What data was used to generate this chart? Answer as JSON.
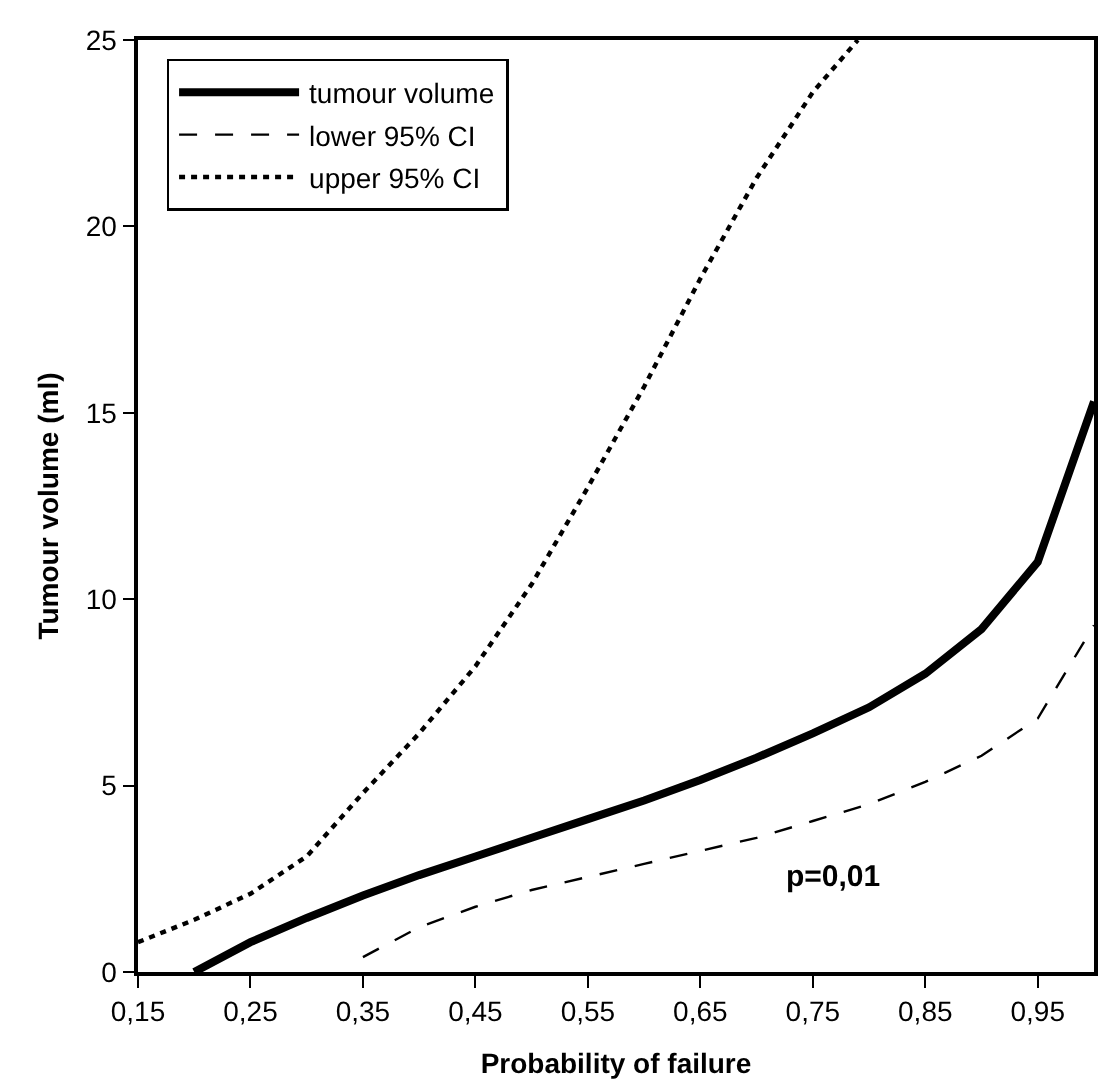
{
  "chart_data": {
    "type": "line",
    "xlabel": "Probability of failure",
    "ylabel": "Tumour volume (ml)",
    "xlim": [
      0.15,
      1.0
    ],
    "xticks": [
      {
        "value": 0.15,
        "label": "0,15"
      },
      {
        "value": 0.25,
        "label": "0,25"
      },
      {
        "value": 0.35,
        "label": "0,35"
      },
      {
        "value": 0.45,
        "label": "0,45"
      },
      {
        "value": 0.55,
        "label": "0,55"
      },
      {
        "value": 0.65,
        "label": "0,65"
      },
      {
        "value": 0.75,
        "label": "0,75"
      },
      {
        "value": 0.85,
        "label": "0,85"
      },
      {
        "value": 0.95,
        "label": "0,95"
      }
    ],
    "ylim": [
      0,
      25
    ],
    "yticks": [
      0,
      5,
      10,
      15,
      20,
      25
    ],
    "grid": false,
    "legend": "top left",
    "marker": "none",
    "series": [
      {
        "name": "tumour volume",
        "color": "#000000",
        "line_style": "solid",
        "x": [
          0.2,
          0.25,
          0.3,
          0.35,
          0.4,
          0.45,
          0.5,
          0.55,
          0.6,
          0.65,
          0.7,
          0.75,
          0.8,
          0.85,
          0.9,
          0.95,
          1.0
        ],
        "values": [
          0,
          0.8,
          1.45,
          2.05,
          2.6,
          3.1,
          3.6,
          4.1,
          4.6,
          5.15,
          5.75,
          6.4,
          7.1,
          8.0,
          9.2,
          11.0,
          15.3
        ]
      },
      {
        "name": "lower 95% CI",
        "color": "#000000",
        "line_style": "dashed",
        "x": [
          0.35,
          0.4,
          0.45,
          0.5,
          0.55,
          0.6,
          0.65,
          0.7,
          0.75,
          0.8,
          0.85,
          0.9,
          0.95,
          1.0
        ],
        "values": [
          0.4,
          1.2,
          1.75,
          2.2,
          2.55,
          2.9,
          3.25,
          3.6,
          4.05,
          4.5,
          5.1,
          5.8,
          6.8,
          9.3
        ]
      },
      {
        "name": "upper 95% CI",
        "color": "#000000",
        "line_style": "dotted",
        "x": [
          0.15,
          0.2,
          0.25,
          0.3,
          0.35,
          0.4,
          0.45,
          0.5,
          0.55,
          0.6,
          0.65,
          0.7,
          0.75,
          0.79
        ],
        "values": [
          0.8,
          1.4,
          2.1,
          3.1,
          4.8,
          6.4,
          8.2,
          10.4,
          13.0,
          15.7,
          18.6,
          21.3,
          23.6,
          25.0
        ]
      }
    ],
    "annotations": [
      "p=0,01"
    ]
  }
}
